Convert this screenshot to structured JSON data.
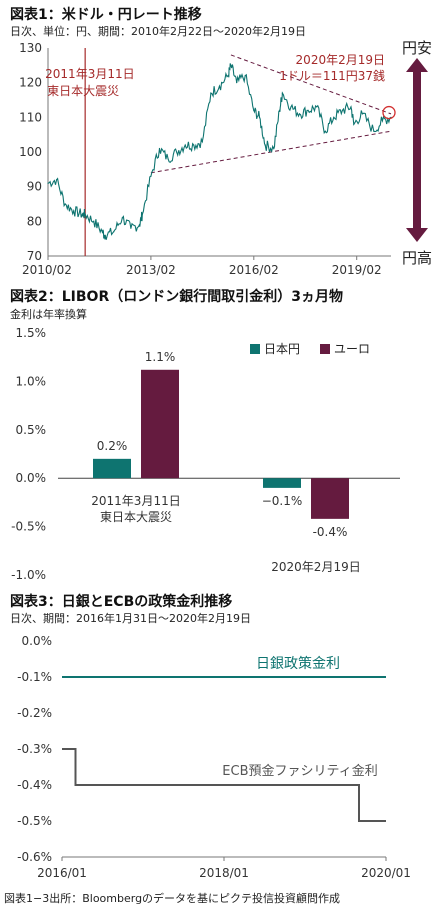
{
  "chart_data": [
    {
      "type": "line",
      "title": "図表1：米ドル・円レート推移",
      "subtitle": "日次、単位：円、期間：2010年2月22日〜2020年2月19日",
      "x_ticks": [
        "2010/02",
        "2013/02",
        "2016/02",
        "2019/02"
      ],
      "ylim": [
        70,
        130
      ],
      "y_ticks": [
        70,
        80,
        90,
        100,
        110,
        120,
        130
      ],
      "series": [
        {
          "x": [
            "2010/02",
            "2010/05",
            "2010/08",
            "2010/11",
            "2011/02",
            "2011/03",
            "2011/06",
            "2011/09",
            "2011/10",
            "2012/01",
            "2012/04",
            "2012/07",
            "2012/10",
            "2012/11",
            "2013/02",
            "2013/05",
            "2013/08",
            "2013/11",
            "2014/02",
            "2014/05",
            "2014/08",
            "2014/11",
            "2015/02",
            "2015/05",
            "2015/06",
            "2015/08",
            "2015/11",
            "2016/02",
            "2016/04",
            "2016/06",
            "2016/09",
            "2016/11",
            "2016/12",
            "2017/03",
            "2017/06",
            "2017/09",
            "2017/12",
            "2018/03",
            "2018/06",
            "2018/09",
            "2018/12",
            "2019/01",
            "2019/04",
            "2019/08",
            "2019/11",
            "2020/02"
          ],
          "values": [
            91,
            92,
            85,
            83,
            82,
            82,
            80,
            77,
            76,
            77,
            81,
            78,
            79,
            82,
            93,
            101,
            98,
            100,
            102,
            102,
            103,
            117,
            119,
            122,
            125,
            120,
            122,
            112,
            110,
            102,
            101,
            112,
            117,
            113,
            111,
            112,
            113,
            106,
            110,
            112,
            113,
            108,
            111,
            106,
            109,
            110
          ]
        }
      ],
      "annotations": [
        {
          "text": "2011年3月11日",
          "date": "2011/03"
        },
        {
          "text": "東日本大震災",
          "date": "2011/03"
        },
        {
          "text": "2020年2月19日",
          "date": "2020/02"
        },
        {
          "text": "1ドル＝111円37銭",
          "date": "2020/02",
          "value": 111.37
        }
      ],
      "trend_lines": [
        {
          "from": {
            "x": "2013/02",
            "y": 94
          },
          "to": {
            "x": "2020/02",
            "y": 106
          }
        },
        {
          "from": {
            "x": "2015/06",
            "y": 128
          },
          "to": {
            "x": "2020/02",
            "y": 111
          }
        }
      ],
      "side_labels": {
        "top": "円安",
        "bottom": "円高"
      },
      "colors": {
        "line": "#0e7470",
        "marker": "#a52a2a",
        "arrow": "#651b3f",
        "trend": "#651b3f"
      }
    },
    {
      "type": "bar",
      "title": "図表2：LIBOR（ロンドン銀行間取引金利）3ヵ月物",
      "subtitle": "金利は年率換算",
      "ylim": [
        -1.0,
        1.5
      ],
      "y_ticks": [
        "1.5%",
        "1.0%",
        "0.5%",
        "0.0%",
        "-0.5%",
        "-1.0%"
      ],
      "y_tick_values": [
        1.5,
        1.0,
        0.5,
        0.0,
        -0.5,
        -1.0
      ],
      "categories": [
        "2011年3月11日\n東日本大震災",
        "2020年2月19日"
      ],
      "category_lines": [
        [
          "2011年3月11日",
          "東日本大震災"
        ],
        [
          "2020年2月19日"
        ]
      ],
      "series": [
        {
          "name": "日本円",
          "values": [
            0.2,
            -0.1
          ],
          "labels": [
            "0.2%",
            "−0.1%"
          ],
          "color": "#0e7470"
        },
        {
          "name": "ユーロ",
          "values": [
            1.12,
            -0.42
          ],
          "labels": [
            "1.1%",
            "-0.4%"
          ],
          "color": "#651b3f"
        }
      ]
    },
    {
      "type": "line",
      "title": "図表3：日銀とECBの政策金利推移",
      "subtitle": "日次、期間：2016年1月31日〜2020年2月19日",
      "ylim": [
        -0.6,
        0.0
      ],
      "y_ticks": [
        "0.0%",
        "-0.1%",
        "-0.2%",
        "-0.3%",
        "-0.4%",
        "-0.5%",
        "-0.6%"
      ],
      "y_tick_values": [
        0.0,
        -0.1,
        -0.2,
        -0.3,
        -0.4,
        -0.5,
        -0.6
      ],
      "x_ticks": [
        "2016/01",
        "2018/01",
        "2020/01"
      ],
      "series": [
        {
          "name": "日銀政策金利",
          "x": [
            "2016/01",
            "2020/02"
          ],
          "values": [
            -0.1,
            -0.1
          ],
          "step": true,
          "color": "#0e7470"
        },
        {
          "name": "ECB預金ファシリティ金利",
          "x": [
            "2016/01",
            "2016/03",
            "2019/09",
            "2020/02"
          ],
          "values": [
            -0.3,
            -0.4,
            -0.5,
            -0.5
          ],
          "step": true,
          "color": "#555555"
        }
      ]
    }
  ],
  "footer": "図表1−3出所：Bloombergのデータを基にピクテ投信投資顧問作成"
}
